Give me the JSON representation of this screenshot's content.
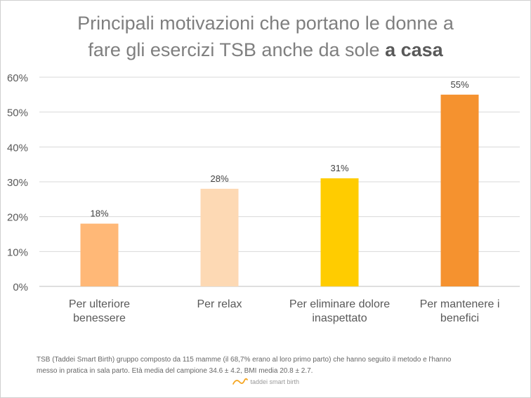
{
  "title": {
    "line1": "Principali motivazioni che portano le donne a",
    "line2_normal": "fare gli esercizi TSB anche da sole ",
    "line2_bold": "a casa"
  },
  "chart_data": {
    "type": "bar",
    "categories": [
      [
        "Per ulteriore",
        "benessere"
      ],
      [
        "Per relax"
      ],
      [
        "Per eliminare dolore",
        "inaspettato"
      ],
      [
        "Per mantenere i",
        "benefici"
      ]
    ],
    "values": [
      18,
      28,
      31,
      55
    ],
    "data_labels": [
      "18%",
      "28%",
      "31%",
      "55%"
    ],
    "bar_colors": [
      "#ffb877",
      "#fdd9b4",
      "#ffcc00",
      "#f5922f"
    ],
    "ylim": [
      0,
      60
    ],
    "yticks": [
      0,
      10,
      20,
      30,
      40,
      50,
      60
    ],
    "ytick_labels": [
      "0%",
      "10%",
      "20%",
      "30%",
      "40%",
      "50%",
      "60%"
    ],
    "grid": true,
    "legend": "none"
  },
  "footnote": {
    "line1": "TSB (Taddei Smart Birth) gruppo composto da 115 mamme (il 68,7% erano al loro primo parto) che hanno seguito il metodo e l'hanno",
    "line2": "messo in pratica in sala parto. Età media del campione 34.6 ± 4.2, BMI media 20.8 ± 2.7."
  },
  "logo": {
    "text": "taddei smart birth",
    "color": "#f5a623"
  }
}
